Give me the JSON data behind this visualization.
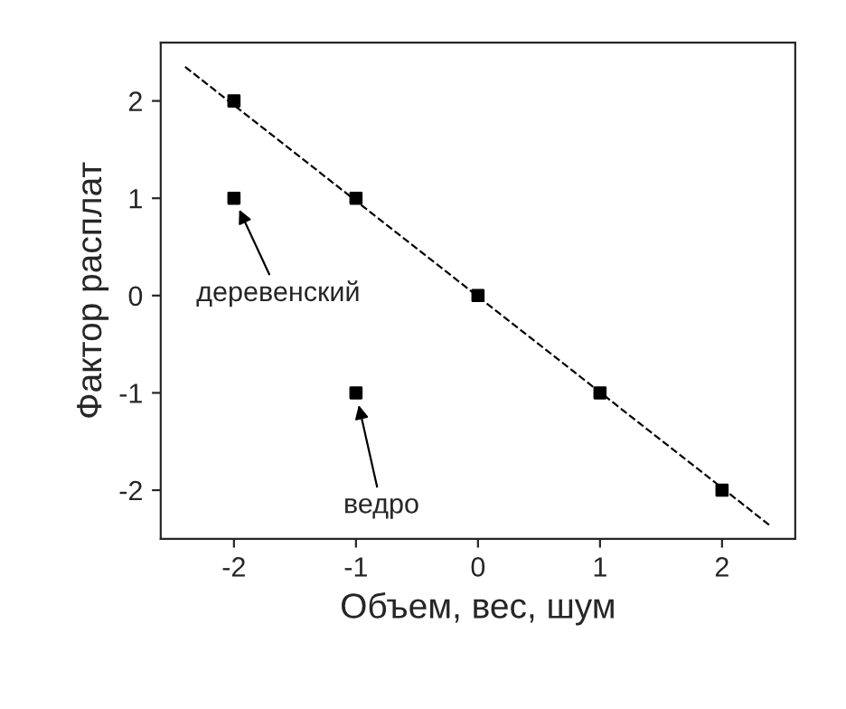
{
  "chart_data": {
    "type": "scatter",
    "xlabel": "Объем, вес, шум",
    "ylabel": "Фактор расплат",
    "series": [
      {
        "color": "#000000",
        "marker": "square",
        "x": [
          -2,
          -1,
          0,
          1,
          2,
          -2,
          -1
        ],
        "values": [
          2,
          1,
          0,
          -1,
          -2,
          1,
          -1
        ]
      },
      {
        "type": "line",
        "color": "#000000",
        "line_style": "dashed",
        "marker": "none",
        "x": [
          -2.4,
          2.4
        ],
        "values": [
          2.35,
          -2.37
        ]
      }
    ],
    "annotations": [
      {
        "text": "деревенский",
        "x": -2,
        "y": 1
      },
      {
        "text": "ведро",
        "x": -1,
        "y": -1
      }
    ],
    "xlim": [
      -2.6,
      2.6
    ],
    "ylim": [
      -2.5,
      2.6
    ],
    "xticks": [
      -2,
      -1,
      0,
      1,
      2
    ],
    "yticks": [
      -2,
      -1,
      0,
      1,
      2
    ],
    "grid": false,
    "legend": false
  }
}
